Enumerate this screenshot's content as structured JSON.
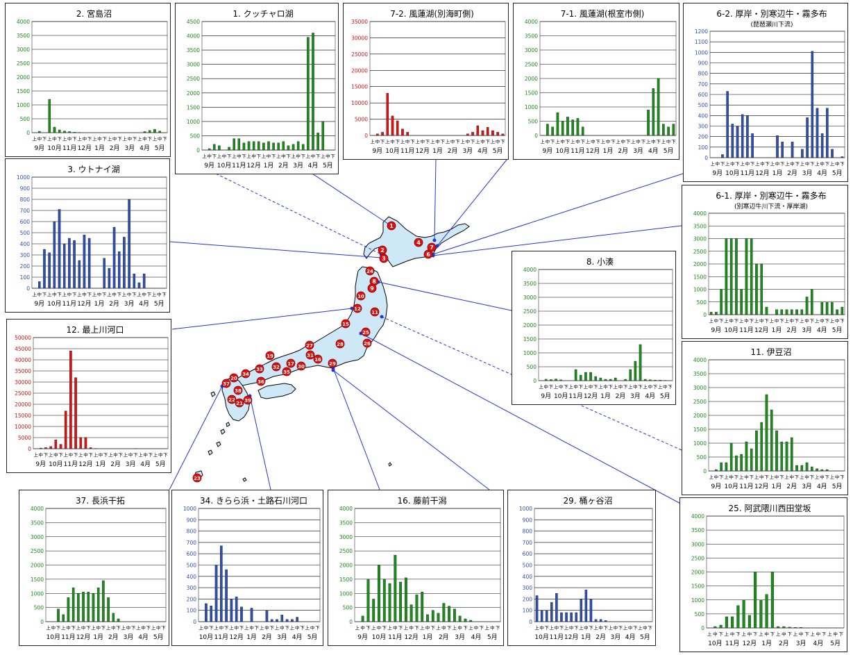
{
  "colors": {
    "green": "#1a8c1a",
    "blue": "#2f4fb0",
    "red": "#e01010",
    "land": "#cfe8f8"
  },
  "half_month_labels": [
    "上",
    "中",
    "下"
  ],
  "map_markers": [
    "1",
    "2",
    "3",
    "4",
    "6",
    "7",
    "8",
    "9",
    "10",
    "11",
    "12",
    "15",
    "16",
    "17",
    "19",
    "20",
    "21",
    "22",
    "23",
    "24",
    "25",
    "26",
    "27",
    "28",
    "29",
    "30",
    "31",
    "32",
    "33",
    "34",
    "35",
    "36",
    "37",
    "38",
    "39"
  ],
  "chart_data": [
    {
      "id": "c2",
      "type": "bar",
      "title": "2. 宮島沼",
      "color": "green",
      "months": [
        "9月",
        "10月",
        "11月",
        "12月",
        "1月",
        "2月",
        "3月",
        "4月",
        "5月"
      ],
      "yticks": [
        "0",
        "500",
        "1000",
        "1500",
        "2000",
        "2500",
        "3000",
        "3500",
        "4000"
      ],
      "ymax": 4000,
      "values": [
        0,
        50,
        0,
        1200,
        200,
        100,
        60,
        40,
        20,
        10,
        0,
        0,
        0,
        0,
        0,
        0,
        0,
        0,
        0,
        0,
        0,
        0,
        40,
        80,
        120,
        60,
        0
      ]
    },
    {
      "id": "c1",
      "type": "bar",
      "title": "1. クッチャロ湖",
      "color": "green",
      "months": [
        "9月",
        "10月",
        "11月",
        "12月",
        "1月",
        "2月",
        "3月",
        "4月",
        "5月"
      ],
      "yticks": [
        "0",
        "500",
        "1000",
        "1500",
        "2000",
        "2500",
        "3000",
        "3500",
        "4000",
        "4500"
      ],
      "ymax": 4500,
      "values": [
        0,
        50,
        200,
        150,
        0,
        100,
        400,
        400,
        250,
        300,
        300,
        300,
        250,
        300,
        250,
        250,
        300,
        150,
        200,
        300,
        200,
        3950,
        4100,
        600,
        1000,
        0,
        0
      ]
    },
    {
      "id": "c72",
      "type": "bar",
      "title": "7-2. 風蓮湖(別海町側)",
      "color": "red",
      "months": [
        "9月",
        "10月",
        "11月",
        "12月",
        "1月",
        "2月",
        "3月",
        "4月",
        "5月"
      ],
      "yticks": [
        "0",
        "5000",
        "10000",
        "15000",
        "20000",
        "25000",
        "30000",
        "35000"
      ],
      "ymax": 35000,
      "values": [
        0,
        500,
        1000,
        13000,
        6000,
        4500,
        2000,
        1000,
        0,
        0,
        0,
        0,
        0,
        0,
        0,
        0,
        0,
        0,
        0,
        500,
        1000,
        3000,
        1500,
        2500,
        1500,
        1000,
        500
      ]
    },
    {
      "id": "c71",
      "type": "bar",
      "title": "7-1. 風蓮湖(根室市側)",
      "color": "green",
      "months": [
        "9月",
        "10月",
        "11月",
        "12月",
        "1月",
        "2月",
        "3月",
        "4月",
        "5月"
      ],
      "yticks": [
        "0",
        "500",
        "1000",
        "1500",
        "2000",
        "2500",
        "3000",
        "3500",
        "4000"
      ],
      "ymax": 4000,
      "values": [
        0,
        400,
        300,
        800,
        500,
        650,
        550,
        600,
        300,
        0,
        0,
        0,
        0,
        0,
        0,
        0,
        0,
        0,
        0,
        0,
        0,
        900,
        1650,
        2000,
        400,
        300,
        400
      ]
    },
    {
      "id": "c62",
      "type": "bar",
      "title": "6-2. 厚岸・別寒辺牛・霧多布",
      "subtitle": "(琵琶瀬川下流)",
      "color": "blue",
      "months": [
        "9月",
        "10月",
        "11月",
        "12月",
        "1月",
        "2月",
        "3月",
        "4月",
        "5月"
      ],
      "yticks": [
        "0",
        "100",
        "200",
        "300",
        "400",
        "500",
        "600",
        "700",
        "800",
        "900",
        "1000",
        "1100",
        "1200"
      ],
      "ymax": 1200,
      "values": [
        0,
        0,
        30,
        630,
        320,
        300,
        410,
        400,
        230,
        0,
        0,
        0,
        0,
        210,
        150,
        0,
        150,
        0,
        80,
        380,
        1010,
        470,
        230,
        470,
        80,
        0,
        10
      ]
    },
    {
      "id": "c3",
      "type": "bar",
      "title": "3. ウトナイ湖",
      "color": "blue",
      "months": [
        "9月",
        "10月",
        "11月",
        "12月",
        "1月",
        "2月",
        "3月",
        "4月",
        "5月"
      ],
      "yticks": [
        "0",
        "100",
        "200",
        "300",
        "400",
        "500",
        "600",
        "700",
        "800",
        "900",
        "1000"
      ],
      "ymax": 1000,
      "values": [
        0,
        60,
        350,
        320,
        600,
        710,
        400,
        450,
        430,
        250,
        480,
        450,
        0,
        0,
        270,
        180,
        550,
        330,
        460,
        800,
        130,
        50,
        130,
        0,
        0,
        0,
        0
      ]
    },
    {
      "id": "c61",
      "type": "bar",
      "title": "6-1. 厚岸・別寒辺牛・霧多布",
      "subtitle": "(別寒辺牛川下流・厚岸湖)",
      "color": "green",
      "months": [
        "9月",
        "10月",
        "11月",
        "12月",
        "1月",
        "2月",
        "3月",
        "4月",
        "5月"
      ],
      "yticks": [
        "0",
        "500",
        "1000",
        "1500",
        "2000",
        "2500",
        "3000",
        "3500",
        "4000"
      ],
      "ymax": 4000,
      "values": [
        100,
        100,
        1000,
        3000,
        3000,
        3000,
        1000,
        3000,
        3000,
        2000,
        2000,
        300,
        0,
        200,
        200,
        200,
        200,
        200,
        200,
        700,
        1000,
        0,
        500,
        500,
        500,
        200,
        300
      ]
    },
    {
      "id": "c8",
      "type": "bar",
      "title": "8. 小湊",
      "color": "green",
      "months": [
        "9月",
        "10月",
        "11月",
        "12月",
        "1月",
        "2月",
        "3月",
        "4月",
        "5月"
      ],
      "yticks": [
        "0",
        "500",
        "1000",
        "1500",
        "2000",
        "2500",
        "3000",
        "3500",
        "4000"
      ],
      "ymax": 4000,
      "values": [
        0,
        50,
        40,
        60,
        30,
        0,
        0,
        400,
        200,
        300,
        300,
        150,
        100,
        50,
        50,
        100,
        0,
        50,
        400,
        700,
        1300,
        50,
        30,
        20,
        20,
        10,
        0
      ]
    },
    {
      "id": "c12",
      "type": "bar",
      "title": "12. 最上川河口",
      "color": "red",
      "months": [
        "9月",
        "10月",
        "11月",
        "12月",
        "1月",
        "2月",
        "3月",
        "4月",
        "5月"
      ],
      "yticks": [
        "0",
        "5000",
        "10000",
        "15000",
        "20000",
        "25000",
        "30000",
        "35000",
        "40000",
        "45000",
        "50000"
      ],
      "ymax": 50000,
      "values": [
        0,
        300,
        500,
        1000,
        4000,
        2000,
        17000,
        44000,
        32000,
        5000,
        5000,
        500,
        100,
        0,
        0,
        0,
        0,
        0,
        0,
        0,
        100,
        0,
        0,
        0,
        0,
        0,
        0
      ]
    },
    {
      "id": "c11",
      "type": "bar",
      "title": "11. 伊豆沼",
      "color": "green",
      "months": [
        "9月",
        "10月",
        "11月",
        "12月",
        "1月",
        "2月",
        "3月",
        "4月",
        "5月"
      ],
      "yticks": [
        "0",
        "500",
        "1000",
        "1500",
        "2000",
        "2500",
        "3000",
        "3500",
        "4000"
      ],
      "ymax": 4000,
      "values": [
        0,
        50,
        300,
        300,
        1000,
        550,
        600,
        1050,
        800,
        1450,
        1750,
        2750,
        2200,
        1450,
        1050,
        1050,
        1200,
        200,
        200,
        300,
        150,
        80,
        50,
        50,
        0,
        0,
        0
      ]
    },
    {
      "id": "c37",
      "type": "bar",
      "title": "37. 長浜干拓",
      "color": "green",
      "months": [
        "10月",
        "11月",
        "12月",
        "1月",
        "2月",
        "3月",
        "4月",
        "5月"
      ],
      "yticks": [
        "0",
        "500",
        "1000",
        "1500",
        "2000",
        "2500",
        "3000",
        "3500",
        "4000"
      ],
      "ymax": 4000,
      "values": [
        0,
        0,
        450,
        250,
        850,
        1200,
        1000,
        1050,
        1050,
        1000,
        1200,
        1450,
        850,
        300,
        100,
        0,
        0,
        0,
        0,
        0,
        0,
        0,
        0,
        0
      ]
    },
    {
      "id": "c34",
      "type": "bar",
      "title": "34. きらら浜・土路石川河口",
      "color": "blue",
      "months": [
        "10月",
        "11月",
        "12月",
        "1月",
        "2月",
        "3月",
        "4月",
        "5月"
      ],
      "yticks": [
        "0",
        "100",
        "200",
        "300",
        "400",
        "500",
        "600",
        "700",
        "800",
        "900",
        "1000"
      ],
      "ymax": 1000,
      "values": [
        0,
        160,
        140,
        500,
        670,
        460,
        200,
        220,
        130,
        0,
        120,
        0,
        0,
        100,
        20,
        20,
        60,
        20,
        20,
        40,
        0,
        0,
        0,
        0
      ]
    },
    {
      "id": "c16",
      "type": "bar",
      "title": "16. 藤前干潟",
      "color": "green",
      "months": [
        "9月",
        "10月",
        "11月",
        "12月",
        "1月",
        "2月",
        "3月",
        "4月",
        "5月"
      ],
      "yticks": [
        "0",
        "500",
        "1000",
        "1500",
        "2000",
        "2500",
        "3000",
        "3500",
        "4000"
      ],
      "ymax": 4000,
      "values": [
        0,
        200,
        1500,
        800,
        2000,
        1500,
        1350,
        2350,
        1400,
        1550,
        600,
        950,
        1050,
        250,
        400,
        300,
        650,
        550,
        450,
        200,
        100,
        50,
        0,
        0,
        0,
        0,
        0
      ]
    },
    {
      "id": "c29",
      "type": "bar",
      "title": "29. 桶ヶ谷沼",
      "color": "blue",
      "months": [
        "10月",
        "11月",
        "12月",
        "1月",
        "2月",
        "3月",
        "4月",
        "5月"
      ],
      "yticks": [
        "0",
        "100",
        "200",
        "300",
        "400",
        "500",
        "600",
        "700",
        "800",
        "900",
        "1000"
      ],
      "ymax": 1000,
      "values": [
        230,
        100,
        100,
        170,
        250,
        80,
        80,
        80,
        80,
        200,
        280,
        200,
        20,
        20,
        10,
        0,
        0,
        0,
        0,
        0,
        0,
        0,
        0,
        0
      ]
    },
    {
      "id": "c25",
      "type": "bar",
      "title": "25. 阿武隈川西田堂坂",
      "color": "green",
      "months": [
        "10月",
        "11月",
        "12月",
        "1月",
        "2月",
        "3月",
        "4月",
        "5月"
      ],
      "yticks": [
        "0",
        "500",
        "1000",
        "1500",
        "2000",
        "2500",
        "3000",
        "3500",
        "4000"
      ],
      "ymax": 4000,
      "values": [
        0,
        50,
        100,
        400,
        400,
        800,
        1000,
        450,
        2000,
        1000,
        1200,
        2000,
        50,
        50,
        30,
        20,
        20,
        0,
        0,
        0,
        0,
        0,
        0,
        0
      ]
    }
  ]
}
